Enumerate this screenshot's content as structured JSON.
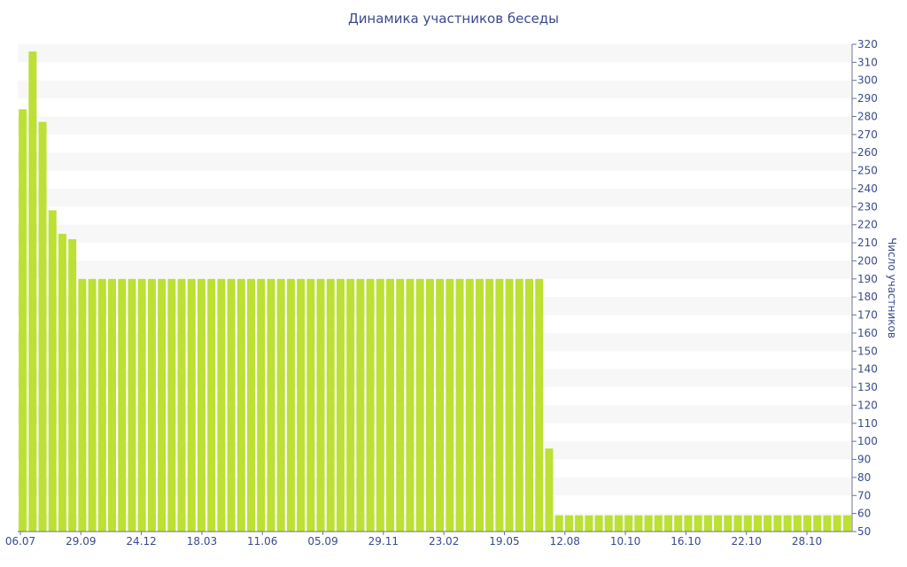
{
  "chart_data": {
    "type": "bar",
    "title": "Динамика участников беседы",
    "ylabel": "Число участников",
    "xlabel": "",
    "ylim": [
      50,
      320
    ],
    "y_ticks": [
      50,
      60,
      70,
      80,
      90,
      100,
      110,
      120,
      130,
      140,
      150,
      160,
      170,
      180,
      190,
      200,
      210,
      220,
      230,
      240,
      250,
      260,
      270,
      280,
      290,
      300,
      310,
      320
    ],
    "x_tick_labels": [
      "06.07",
      "29.09",
      "24.12",
      "18.03",
      "11.06",
      "05.09",
      "29.11",
      "23.02",
      "19.05",
      "12.08",
      "10.10",
      "16.10",
      "22.10",
      "28.10"
    ],
    "y_axis_side": "right",
    "grid": "horizontal bands",
    "colors": {
      "bar": "#bce033",
      "band": "#f7f7f7",
      "text": "#3a4a8c",
      "axis": "#6b7394"
    },
    "values": [
      284,
      316,
      277,
      228,
      215,
      212,
      190,
      190,
      190,
      190,
      190,
      190,
      190,
      190,
      190,
      190,
      190,
      190,
      190,
      190,
      190,
      190,
      190,
      190,
      190,
      190,
      190,
      190,
      190,
      190,
      190,
      190,
      190,
      190,
      190,
      190,
      190,
      190,
      190,
      190,
      190,
      190,
      190,
      190,
      190,
      190,
      190,
      190,
      190,
      190,
      190,
      190,
      190,
      96,
      59,
      59,
      59,
      59,
      59,
      59,
      59,
      59,
      59,
      59,
      59,
      59,
      59,
      59,
      59,
      59,
      59,
      59,
      59,
      59,
      59,
      59,
      59,
      59,
      59,
      59,
      59,
      59,
      59,
      59
    ]
  }
}
